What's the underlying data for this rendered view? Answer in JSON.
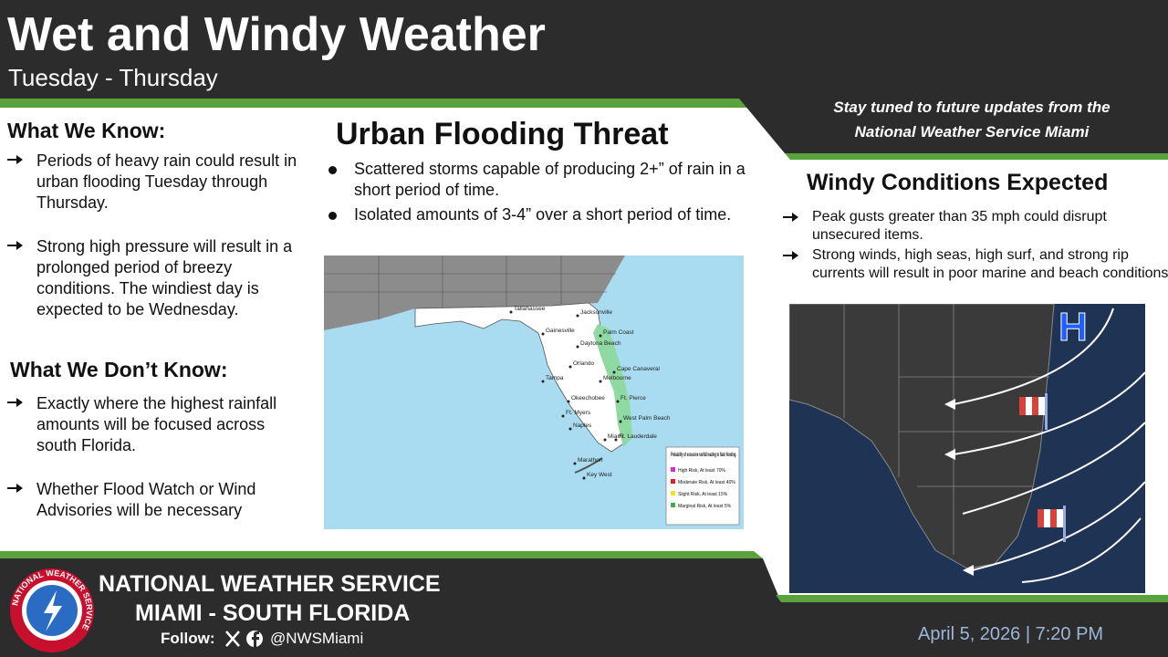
{
  "header": {
    "title": "Wet and Windy Weather",
    "subtitle": "Tuesday - Thursday"
  },
  "banner": {
    "line1": "Stay tuned to future updates from the",
    "line2": "National Weather Service Miami"
  },
  "known": {
    "heading": "What We Know:",
    "items": [
      "Periods of heavy rain could result in urban flooding Tuesday through Thursday.",
      "Strong high pressure will result in a prolonged period of breezy conditions. The windiest day is expected to be Wednesday."
    ]
  },
  "unknown": {
    "heading": "What We Don’t Know:",
    "items": [
      "Exactly where the highest rainfall amounts will be focused across south Florida.",
      "Whether Flood Watch or Wind Advisories will be necessary"
    ]
  },
  "flooding": {
    "heading": "Urban Flooding Threat",
    "bullets": [
      "Scattered storms capable of producing 2+” of rain in a short period of time.",
      "Isolated amounts of 3-4” over a short period of time."
    ],
    "map": {
      "cities": [
        "Tallahassee",
        "Jacksonville",
        "Gainesville",
        "Palm Coast",
        "Daytona Beach",
        "Orlando",
        "Cape Canaveral",
        "Melbourne",
        "Tampa",
        "Okeechobee",
        "Ft. Pierce",
        "West Palm Beach",
        "Ft. Myers",
        "Naples",
        "Miami",
        "Ft. Lauderdale",
        "Marathon",
        "Key West"
      ],
      "legend": {
        "title": "Probability of excessive rainfall leading to flash flooding.",
        "entries": [
          {
            "label": "High Risk, At least 70%",
            "color": "#d62bd6"
          },
          {
            "label": "Moderate Risk, At least 40%",
            "color": "#e02020"
          },
          {
            "label": "Slight Risk, At least 15%",
            "color": "#f2e22a"
          },
          {
            "label": "Marginal Risk, At least 5%",
            "color": "#3fae49"
          }
        ]
      }
    }
  },
  "wind": {
    "heading": "Windy Conditions Expected",
    "bullets": [
      "Peak gusts greater than 35 mph could disrupt unsecured items.",
      "Strong winds, high seas, high surf, and strong rip currents will result in poor marine and beach conditions."
    ],
    "map_symbol": "H"
  },
  "footer": {
    "logo_text": "NATIONAL WEATHER SERVICE",
    "org_line1": "NATIONAL WEATHER SERVICE",
    "org_line2": "MIAMI - SOUTH FLORIDA",
    "follow": "Follow:",
    "handle": "@NWSMiami",
    "date": "April 5, 2026 | 7:20 PM"
  }
}
